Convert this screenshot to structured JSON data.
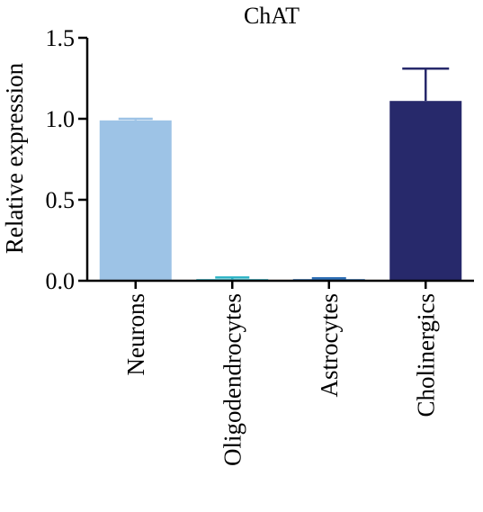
{
  "chart_data": {
    "type": "bar",
    "title": "ChAT",
    "ylabel": "Relative expression",
    "xlabel": "",
    "categories": [
      "Neurons",
      "Oligodendrocytes",
      "Astrocytes",
      "Cholinergics"
    ],
    "values": [
      0.99,
      0.01,
      0.01,
      1.11
    ],
    "errors": [
      0.01,
      0.01,
      0.005,
      0.2
    ],
    "colors": [
      "#9dc3e6",
      "#2ab3c5",
      "#2e6fb5",
      "#27296b"
    ],
    "ylim": [
      0,
      1.5
    ],
    "yticks": [
      0.0,
      0.5,
      1.0,
      1.5
    ],
    "ytick_labels": [
      "0.0",
      "0.5",
      "1.0",
      "1.5"
    ],
    "grid": false,
    "legend": "none"
  }
}
